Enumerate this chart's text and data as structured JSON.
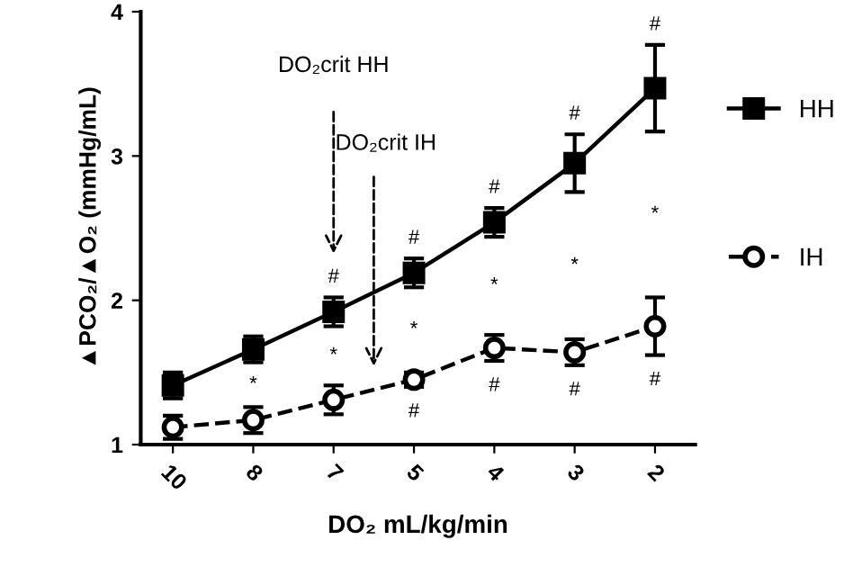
{
  "chart_data": {
    "type": "line",
    "xlabel": "DO₂ mL/kg/min",
    "ylabel": "▲PCO₂/▲O₂ (mmHg/mL)",
    "categories": [
      "10",
      "8",
      "7",
      "5",
      "4",
      "3",
      "2"
    ],
    "ylim": [
      1,
      4
    ],
    "yticks": [
      1,
      2,
      3,
      4
    ],
    "grid": false,
    "legend": "right",
    "series": [
      {
        "name": "HH",
        "color": "#000000",
        "marker": "square",
        "line_style": "solid",
        "values": [
          1.41,
          1.66,
          1.92,
          2.19,
          2.54,
          2.95,
          3.47
        ],
        "errors": [
          0.09,
          0.09,
          0.1,
          0.1,
          0.1,
          0.2,
          0.3
        ],
        "value_labels": [
          null,
          null,
          "#",
          "#",
          "#",
          "#",
          "#"
        ]
      },
      {
        "name": "IH",
        "color": "#000000",
        "marker": "circle",
        "line_style": "dashed",
        "values": [
          1.12,
          1.17,
          1.31,
          1.45,
          1.67,
          1.64,
          1.82
        ],
        "errors": [
          0.08,
          0.09,
          0.1,
          0.05,
          0.09,
          0.09,
          0.2
        ],
        "value_labels": [
          null,
          null,
          null,
          "#",
          "#",
          "#",
          "#"
        ]
      }
    ],
    "annotations": [
      "DO₂crit HH",
      "DO₂crit IH",
      "*",
      "*",
      "*",
      "*",
      "*",
      "*"
    ]
  }
}
